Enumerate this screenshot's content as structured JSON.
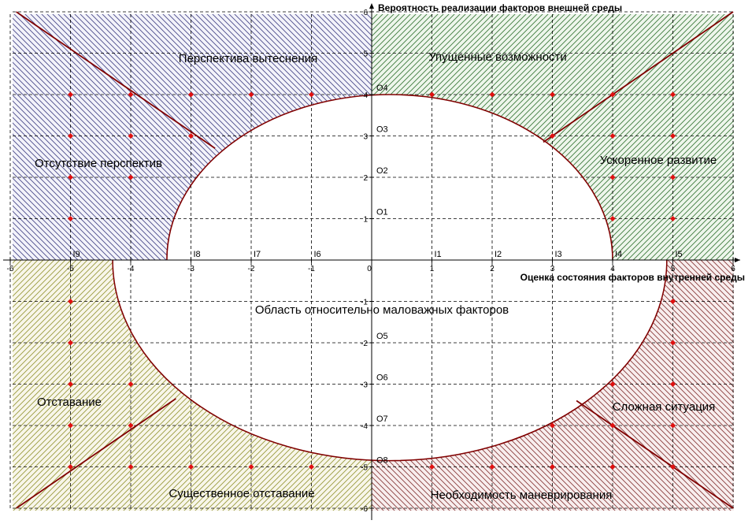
{
  "chart_data": {
    "type": "scatter",
    "x_axis_label": "Оценка состояния факторов внутренней среды",
    "y_axis_label": "Вероятность реализации факторов внешней среды",
    "xlim": [
      -6,
      6
    ],
    "ylim": [
      -6,
      6
    ],
    "grid": true,
    "x_ticks": [
      "-6",
      "-5",
      "-4",
      "-3",
      "-2",
      "-1",
      "0",
      "1",
      "2",
      "3",
      "4",
      "5",
      "6"
    ],
    "y_ticks": [
      "6",
      "5",
      "4",
      "3",
      "2",
      "1",
      "-1",
      "-2",
      "-3",
      "-4",
      "-5",
      "-6"
    ],
    "x_markers": [
      {
        "label": "I1",
        "x": 1
      },
      {
        "label": "I2",
        "x": 2
      },
      {
        "label": "I3",
        "x": 3
      },
      {
        "label": "I4",
        "x": 4
      },
      {
        "label": "I5",
        "x": 5
      },
      {
        "label": "I6",
        "x": -1
      },
      {
        "label": "I7",
        "x": -2
      },
      {
        "label": "I8",
        "x": -3
      },
      {
        "label": "I9",
        "x": -5
      }
    ],
    "y_markers": [
      {
        "label": "O1",
        "y": 1
      },
      {
        "label": "O2",
        "y": 2
      },
      {
        "label": "O3",
        "y": 3
      },
      {
        "label": "O4",
        "y": 4
      },
      {
        "label": "O5",
        "y": -2
      },
      {
        "label": "O6",
        "y": -3
      },
      {
        "label": "O7",
        "y": -4
      },
      {
        "label": "O8",
        "y": -5
      }
    ],
    "regions": [
      {
        "key": "displacement",
        "label": "Перспектива вытеснения",
        "color": "#4a4a8a"
      },
      {
        "key": "missed",
        "label": "Упущенные возможности",
        "color": "#3c7a3c"
      },
      {
        "key": "no_prospects",
        "label": "Отсутствие перспектив",
        "color": "#4a4a8a"
      },
      {
        "key": "accelerated",
        "label": "Ускоренное развитие",
        "color": "#3c7a3c"
      },
      {
        "key": "minor",
        "label": "Область относительно маловажных факторов",
        "color": "#ffffff"
      },
      {
        "key": "lagging",
        "label": "Отставание",
        "color": "#9a9a3c"
      },
      {
        "key": "difficult",
        "label": "Сложная ситуация",
        "color": "#8a3c3c"
      },
      {
        "key": "significant_lagging",
        "label": "Существенное отставание",
        "color": "#9a9a3c"
      },
      {
        "key": "maneuvering",
        "label": "Необходимость маневрирования",
        "color": "#8a3c3c"
      }
    ],
    "points": [
      {
        "x": -5,
        "y": 4
      },
      {
        "x": -4,
        "y": 4
      },
      {
        "x": -3,
        "y": 4
      },
      {
        "x": -2,
        "y": 4
      },
      {
        "x": -1,
        "y": 4
      },
      {
        "x": -5,
        "y": 3
      },
      {
        "x": -4,
        "y": 3
      },
      {
        "x": -3,
        "y": 3
      },
      {
        "x": -5,
        "y": 2
      },
      {
        "x": -4,
        "y": 2
      },
      {
        "x": -5,
        "y": 1
      },
      {
        "x": 1,
        "y": 4
      },
      {
        "x": 2,
        "y": 4
      },
      {
        "x": 3,
        "y": 4
      },
      {
        "x": 4,
        "y": 4
      },
      {
        "x": 5,
        "y": 4
      },
      {
        "x": 3,
        "y": 3
      },
      {
        "x": 4,
        "y": 3
      },
      {
        "x": 5,
        "y": 3
      },
      {
        "x": 4,
        "y": 2
      },
      {
        "x": 5,
        "y": 2
      },
      {
        "x": 4,
        "y": 1
      },
      {
        "x": 5,
        "y": 1
      },
      {
        "x": -5,
        "y": -1
      },
      {
        "x": -5,
        "y": -2
      },
      {
        "x": -5,
        "y": -3
      },
      {
        "x": -4,
        "y": -3
      },
      {
        "x": -5,
        "y": -4
      },
      {
        "x": -4,
        "y": -4
      },
      {
        "x": -5,
        "y": -5
      },
      {
        "x": -4,
        "y": -5
      },
      {
        "x": -3,
        "y": -5
      },
      {
        "x": -2,
        "y": -5
      },
      {
        "x": -1,
        "y": -5
      },
      {
        "x": 5,
        "y": -1
      },
      {
        "x": 5,
        "y": -2
      },
      {
        "x": 4,
        "y": -3
      },
      {
        "x": 5,
        "y": -3
      },
      {
        "x": 3,
        "y": -4
      },
      {
        "x": 4,
        "y": -4
      },
      {
        "x": 5,
        "y": -4
      },
      {
        "x": 1,
        "y": -5
      },
      {
        "x": 2,
        "y": -5
      },
      {
        "x": 3,
        "y": -5
      },
      {
        "x": 4,
        "y": -5
      },
      {
        "x": 5,
        "y": -5
      }
    ],
    "upper_ellipse": {
      "center_x": 0.3,
      "center_y": 0,
      "semi_axis_x": 3.7,
      "semi_axis_y": 4.0
    },
    "lower_ellipse": {
      "center_x": 0.3,
      "center_y": 0,
      "semi_axis_x": 4.6,
      "semi_axis_y": 4.85
    },
    "boundary_lines": [
      {
        "from": [
          -5.9,
          6
        ],
        "to": [
          -2.6,
          2.7
        ]
      },
      {
        "from": [
          6,
          6
        ],
        "to": [
          2.85,
          2.85
        ]
      },
      {
        "from": [
          -5.9,
          -6
        ],
        "to": [
          -3.25,
          -3.35
        ]
      },
      {
        "from": [
          6,
          -6
        ],
        "to": [
          3.4,
          -3.4
        ]
      }
    ],
    "colors": {
      "point": "#e01010",
      "curve": "#800000",
      "grid": "#000000",
      "axis": "#000000"
    }
  }
}
